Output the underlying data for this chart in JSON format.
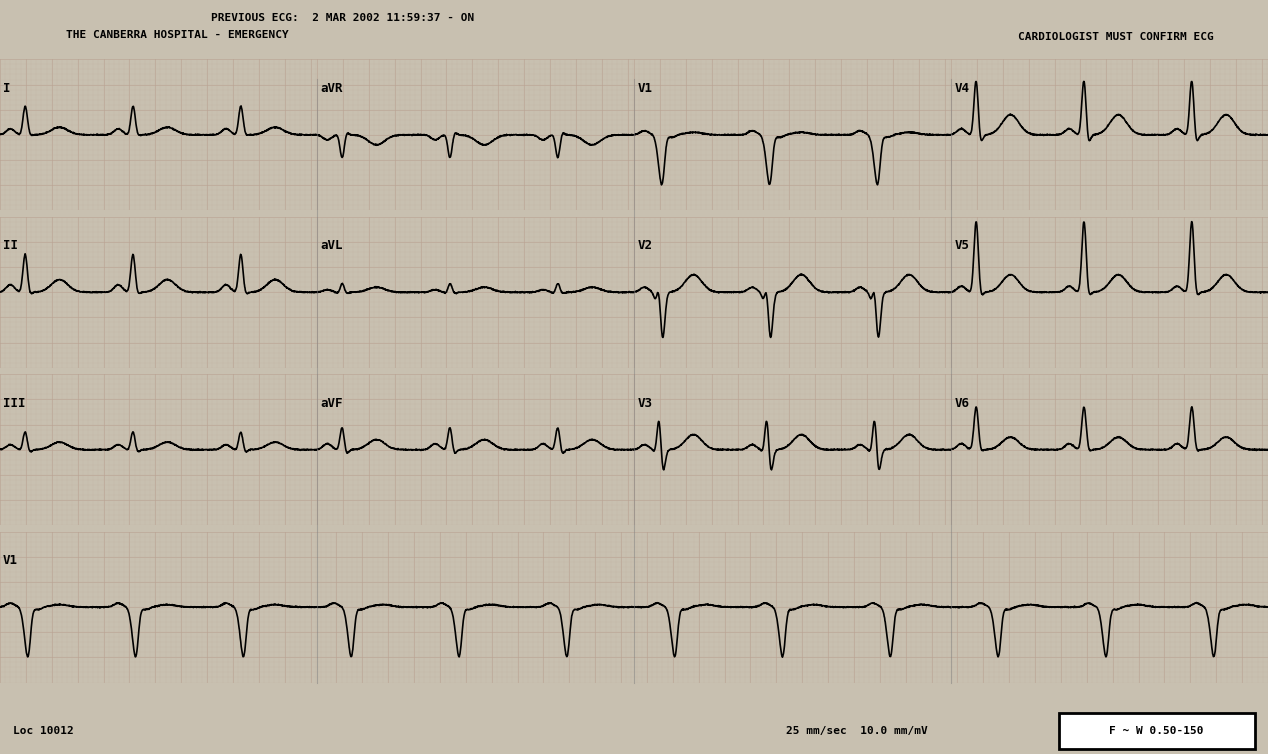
{
  "title_left": "PREVIOUS ECG:  2 MAR 2002 11:59:37 - ON\nTHE CANBERRA HOSPITAL - EMERGENCY",
  "title_right": "CARDIOLOGIST MUST CONFIRM ECG",
  "footer_left": "Loc 10012",
  "footer_right": "25 mm/sec  10.0 mm/mV",
  "footer_box": "F ~ W 0.50-150",
  "background_color": "#d8d8d8",
  "grid_major_color": "#b0a0a0",
  "grid_minor_color": "#c8b8b8",
  "ecg_color": "#000000",
  "lead_labels": [
    "I",
    "aVR",
    "V1",
    "V4",
    "II",
    "aVL",
    "V2",
    "V5",
    "III",
    "aVF",
    "V3",
    "V6",
    "V1"
  ],
  "sample_rate": 500,
  "paper_speed": 25,
  "amplitude": 10.0
}
